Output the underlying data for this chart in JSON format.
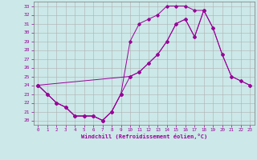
{
  "xlabel": "Windchill (Refroidissement éolien,°C)",
  "x_ticks": [
    0,
    1,
    2,
    3,
    4,
    5,
    6,
    7,
    8,
    9,
    10,
    11,
    12,
    13,
    14,
    15,
    16,
    17,
    18,
    19,
    20,
    21,
    22,
    23
  ],
  "y_ticks": [
    20,
    21,
    22,
    23,
    24,
    25,
    26,
    27,
    28,
    29,
    30,
    31,
    32,
    33
  ],
  "ylim": [
    19.5,
    33.5
  ],
  "xlim": [
    -0.5,
    23.5
  ],
  "line_color": "#990099",
  "bg_color": "#cce8e8",
  "grid_color": "#b0b0b0",
  "line1_x": [
    0,
    1,
    2,
    3,
    4,
    5,
    6,
    7,
    8,
    9
  ],
  "line1_y": [
    24.0,
    23.0,
    22.0,
    21.5,
    20.5,
    20.5,
    20.5,
    20.0,
    21.0,
    23.0
  ],
  "line2_x": [
    0,
    1,
    2,
    3,
    4,
    5,
    6,
    7,
    8,
    9,
    10,
    11,
    12,
    13,
    14,
    15,
    16,
    17,
    18
  ],
  "line2_y": [
    24.0,
    23.0,
    22.0,
    21.5,
    20.5,
    20.5,
    20.5,
    20.0,
    21.0,
    23.0,
    29.0,
    31.0,
    31.5,
    32.0,
    33.0,
    33.0,
    33.0,
    32.5,
    32.5
  ],
  "line3_x": [
    0,
    10,
    11,
    12,
    13,
    14,
    15,
    16,
    17,
    18,
    19,
    20,
    21,
    22,
    23
  ],
  "line3_y": [
    24.0,
    25.0,
    25.5,
    26.5,
    27.5,
    29.0,
    31.0,
    31.5,
    29.5,
    32.5,
    30.5,
    27.5,
    25.0,
    24.5,
    24.0
  ],
  "line4_x": [
    0,
    1,
    2,
    3,
    4,
    5,
    6,
    7,
    8,
    9,
    10,
    11,
    12,
    13,
    14,
    15,
    16,
    17,
    18,
    19,
    20,
    21,
    22,
    23
  ],
  "line4_y": [
    24.0,
    23.0,
    22.0,
    21.5,
    20.5,
    20.5,
    20.5,
    20.0,
    21.0,
    23.0,
    25.0,
    25.5,
    26.5,
    27.5,
    29.0,
    31.0,
    31.5,
    29.5,
    32.5,
    30.5,
    27.5,
    25.0,
    24.5,
    24.0
  ]
}
